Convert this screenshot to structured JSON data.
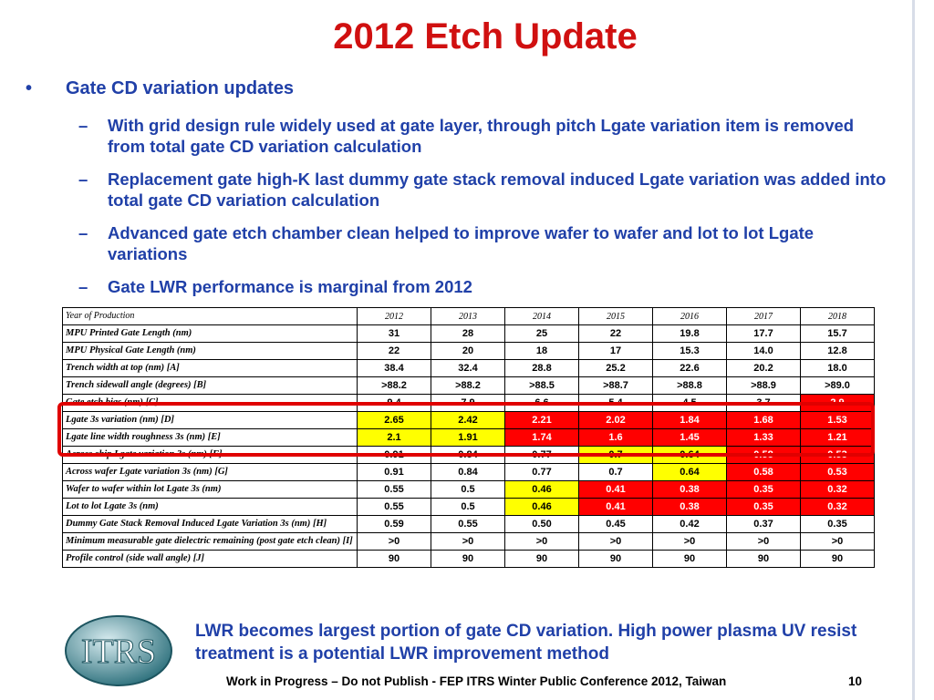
{
  "title": "2012 Etch Update",
  "bullet": {
    "text": "Gate CD variation updates",
    "subs": [
      "With grid design rule widely used at gate layer, through pitch Lgate variation item is removed from total gate CD variation calculation",
      "Replacement gate high-K last dummy gate stack removal induced Lgate variation was added into total gate CD variation calculation",
      "Advanced gate etch chamber clean helped to improve wafer to wafer and lot to lot Lgate variations",
      "Gate LWR performance is marginal from 2012"
    ]
  },
  "table": {
    "rows": [
      {
        "label": "Year of Production",
        "cells": [
          "2012",
          "2013",
          "2014",
          "2015",
          "2016",
          "2017",
          "2018"
        ],
        "fills": [
          "#ffffff",
          "#ffffff",
          "#ffffff",
          "#ffffff",
          "#ffffff",
          "#ffffff",
          "#ffffff"
        ]
      },
      {
        "label": "MPU Printed Gate Length (nm)",
        "cells": [
          "31",
          "28",
          "25",
          "22",
          "19.8",
          "17.7",
          "15.7"
        ],
        "fills": [
          "#ffffff",
          "#ffffff",
          "#ffffff",
          "#ffffff",
          "#ffffff",
          "#ffffff",
          "#ffffff"
        ]
      },
      {
        "label": "MPU Physical Gate Length (nm)",
        "cells": [
          "22",
          "20",
          "18",
          "17",
          "15.3",
          "14.0",
          "12.8"
        ],
        "fills": [
          "#ffffff",
          "#ffffff",
          "#ffffff",
          "#ffffff",
          "#ffffff",
          "#ffffff",
          "#ffffff"
        ]
      },
      {
        "label": "Trench width at top (nm) [A]",
        "cells": [
          "38.4",
          "32.4",
          "28.8",
          "25.2",
          "22.6",
          "20.2",
          "18.0"
        ],
        "fills": [
          "#ffffff",
          "#ffffff",
          "#ffffff",
          "#ffffff",
          "#ffffff",
          "#ffffff",
          "#ffffff"
        ]
      },
      {
        "label": "Trench sidewall angle (degrees) [B]",
        "cells": [
          ">88.2",
          ">88.2",
          ">88.5",
          ">88.7",
          ">88.8",
          ">88.9",
          ">89.0"
        ],
        "fills": [
          "#ffffff",
          "#ffffff",
          "#ffffff",
          "#ffffff",
          "#ffffff",
          "#ffffff",
          "#ffffff"
        ]
      },
      {
        "label": "Gate etch bias (nm) [C]",
        "cells": [
          "9.4",
          "7.9",
          "6.6",
          "5.4",
          "4.5",
          "3.7",
          "2.9"
        ],
        "fills": [
          "#ffffff",
          "#ffffff",
          "#ffffff",
          "#ffffff",
          "#ffffff",
          "#ffffff",
          "#ff0000"
        ]
      },
      {
        "label": "Lgate 3s variation (nm) [D]",
        "cells": [
          "2.65",
          "2.42",
          "2.21",
          "2.02",
          "1.84",
          "1.68",
          "1.53"
        ],
        "fills": [
          "#ffff00",
          "#ffff00",
          "#ff0000",
          "#ff0000",
          "#ff0000",
          "#ff0000",
          "#ff0000"
        ]
      },
      {
        "label": "Lgate line width roughness 3s (nm) [E]",
        "cells": [
          "2.1",
          "1.91",
          "1.74",
          "1.6",
          "1.45",
          "1.33",
          "1.21"
        ],
        "fills": [
          "#ffff00",
          "#ffff00",
          "#ff0000",
          "#ff0000",
          "#ff0000",
          "#ff0000",
          "#ff0000"
        ]
      },
      {
        "label": "Across chip Lgate variation 3s (nm) [F]",
        "cells": [
          "0.91",
          "0.84",
          "0.77",
          "0.7",
          "0.64",
          "0.58",
          "0.53"
        ],
        "fills": [
          "#ffffff",
          "#ffffff",
          "#ffffff",
          "#ffff00",
          "#ffff00",
          "#ff0000",
          "#ff0000"
        ]
      },
      {
        "label": "Across wafer Lgate variation 3s (nm) [G]",
        "cells": [
          "0.91",
          "0.84",
          "0.77",
          "0.7",
          "0.64",
          "0.58",
          "0.53"
        ],
        "fills": [
          "#ffffff",
          "#ffffff",
          "#ffffff",
          "#ffffff",
          "#ffff00",
          "#ff0000",
          "#ff0000"
        ]
      },
      {
        "label": "Wafer to wafer within lot Lgate 3s (nm)",
        "cells": [
          "0.55",
          "0.5",
          "0.46",
          "0.41",
          "0.38",
          "0.35",
          "0.32"
        ],
        "fills": [
          "#ffffff",
          "#ffffff",
          "#ffff00",
          "#ff0000",
          "#ff0000",
          "#ff0000",
          "#ff0000"
        ]
      },
      {
        "label": "Lot to lot Lgate 3s (nm)",
        "cells": [
          "0.55",
          "0.5",
          "0.46",
          "0.41",
          "0.38",
          "0.35",
          "0.32"
        ],
        "fills": [
          "#ffffff",
          "#ffffff",
          "#ffff00",
          "#ff0000",
          "#ff0000",
          "#ff0000",
          "#ff0000"
        ]
      },
      {
        "label": "Dummy Gate Stack Removal Induced Lgate Variation 3s (nm) [H]",
        "cells": [
          "0.59",
          "0.55",
          "0.50",
          "0.45",
          "0.42",
          "0.37",
          "0.35"
        ],
        "fills": [
          "#ffffff",
          "#ffffff",
          "#ffffff",
          "#ffffff",
          "#ffffff",
          "#ffffff",
          "#ffffff"
        ]
      },
      {
        "label": "Minimum measurable gate dielectric remaining (post gate etch clean) [I]",
        "cells": [
          ">0",
          ">0",
          ">0",
          ">0",
          ">0",
          ">0",
          ">0"
        ],
        "fills": [
          "#ffffff",
          "#ffffff",
          "#ffffff",
          "#ffffff",
          "#ffffff",
          "#ffffff",
          "#ffffff"
        ]
      },
      {
        "label": "Profile control (side wall angle) [J]",
        "cells": [
          "90",
          "90",
          "90",
          "90",
          "90",
          "90",
          "90"
        ],
        "fills": [
          "#ffffff",
          "#ffffff",
          "#ffffff",
          "#ffffff",
          "#ffffff",
          "#ffffff",
          "#ffffff"
        ]
      }
    ]
  },
  "note": "LWR becomes largest portion of gate CD variation. High power plasma UV resist treatment is a potential LWR improvement method",
  "logo": "ITRS",
  "footer": {
    "text": "Work in Progress – Do not Publish -  FEP ITRS Winter Public Conference 2012, Taiwan",
    "page": "10"
  }
}
